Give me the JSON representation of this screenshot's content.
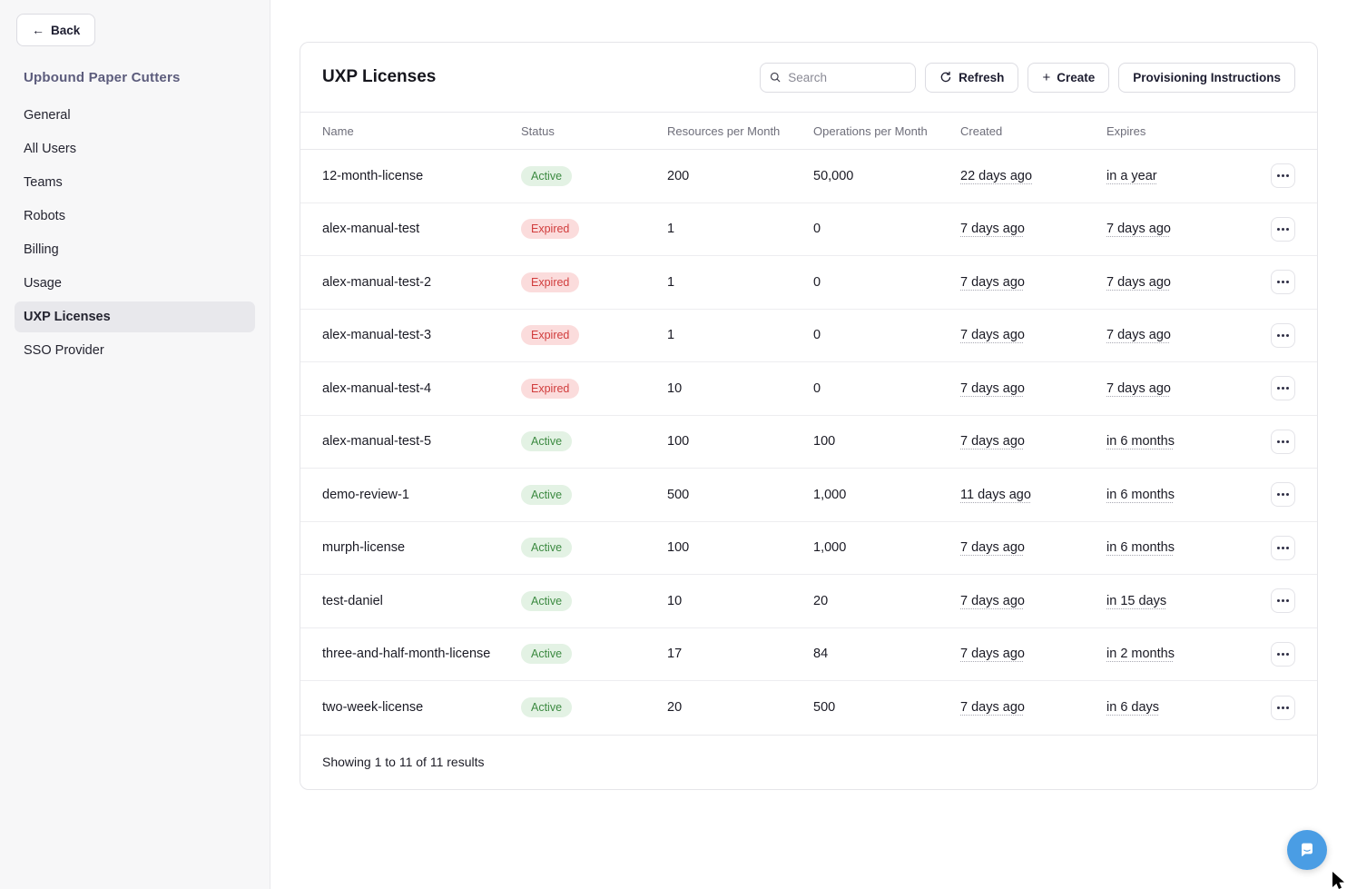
{
  "sidebar": {
    "back_label": "Back",
    "back_arrow": "←",
    "org_name": "Upbound Paper Cutters",
    "items": [
      {
        "label": "General",
        "active": false
      },
      {
        "label": "All Users",
        "active": false
      },
      {
        "label": "Teams",
        "active": false
      },
      {
        "label": "Robots",
        "active": false
      },
      {
        "label": "Billing",
        "active": false
      },
      {
        "label": "Usage",
        "active": false
      },
      {
        "label": "UXP Licenses",
        "active": true
      },
      {
        "label": "SSO Provider",
        "active": false
      }
    ]
  },
  "header": {
    "title": "UXP Licenses",
    "search_placeholder": "Search",
    "refresh_label": "Refresh",
    "create_label": "Create",
    "create_plus": "+",
    "provisioning_label": "Provisioning Instructions"
  },
  "table": {
    "columns": [
      "Name",
      "Status",
      "Resources per Month",
      "Operations per Month",
      "Created",
      "Expires"
    ],
    "rows": [
      {
        "name": "12-month-license",
        "status": "Active",
        "status_type": "active",
        "resources": "200",
        "operations": "50,000",
        "created": "22 days ago",
        "expires": "in a year"
      },
      {
        "name": "alex-manual-test",
        "status": "Expired",
        "status_type": "expired",
        "resources": "1",
        "operations": "0",
        "created": "7 days ago",
        "expires": "7 days ago"
      },
      {
        "name": "alex-manual-test-2",
        "status": "Expired",
        "status_type": "expired",
        "resources": "1",
        "operations": "0",
        "created": "7 days ago",
        "expires": "7 days ago"
      },
      {
        "name": "alex-manual-test-3",
        "status": "Expired",
        "status_type": "expired",
        "resources": "1",
        "operations": "0",
        "created": "7 days ago",
        "expires": "7 days ago"
      },
      {
        "name": "alex-manual-test-4",
        "status": "Expired",
        "status_type": "expired",
        "resources": "10",
        "operations": "0",
        "created": "7 days ago",
        "expires": "7 days ago"
      },
      {
        "name": "alex-manual-test-5",
        "status": "Active",
        "status_type": "active",
        "resources": "100",
        "operations": "100",
        "created": "7 days ago",
        "expires": "in 6 months"
      },
      {
        "name": "demo-review-1",
        "status": "Active",
        "status_type": "active",
        "resources": "500",
        "operations": "1,000",
        "created": "11 days ago",
        "expires": "in 6 months"
      },
      {
        "name": "murph-license",
        "status": "Active",
        "status_type": "active",
        "resources": "100",
        "operations": "1,000",
        "created": "7 days ago",
        "expires": "in 6 months"
      },
      {
        "name": "test-daniel",
        "status": "Active",
        "status_type": "active",
        "resources": "10",
        "operations": "20",
        "created": "7 days ago",
        "expires": "in 15 days"
      },
      {
        "name": "three-and-half-month-license",
        "status": "Active",
        "status_type": "active",
        "resources": "17",
        "operations": "84",
        "created": "7 days ago",
        "expires": "in 2 months"
      },
      {
        "name": "two-week-license",
        "status": "Active",
        "status_type": "active",
        "resources": "20",
        "operations": "500",
        "created": "7 days ago",
        "expires": "in 6 days"
      }
    ],
    "footer": "Showing 1 to 11 of 11 results"
  },
  "colors": {
    "badge_active_bg": "#e3f2e4",
    "badge_active_text": "#3c8a41",
    "badge_expired_bg": "#fbdcdc",
    "badge_expired_text": "#d13c3c",
    "sidebar_bg": "#f7f7f8",
    "sidebar_selected_bg": "#e8e8ec",
    "org_name_text": "#5c5c7c",
    "chat_launcher_bg": "#4a9de4",
    "card_border": "#e5e5e9"
  },
  "icons": {
    "search": "search-icon",
    "refresh": "refresh-icon",
    "plus": "plus-icon",
    "back_arrow": "arrow-left-icon",
    "more": "ellipsis-icon",
    "chat": "chat-bubble-icon"
  }
}
